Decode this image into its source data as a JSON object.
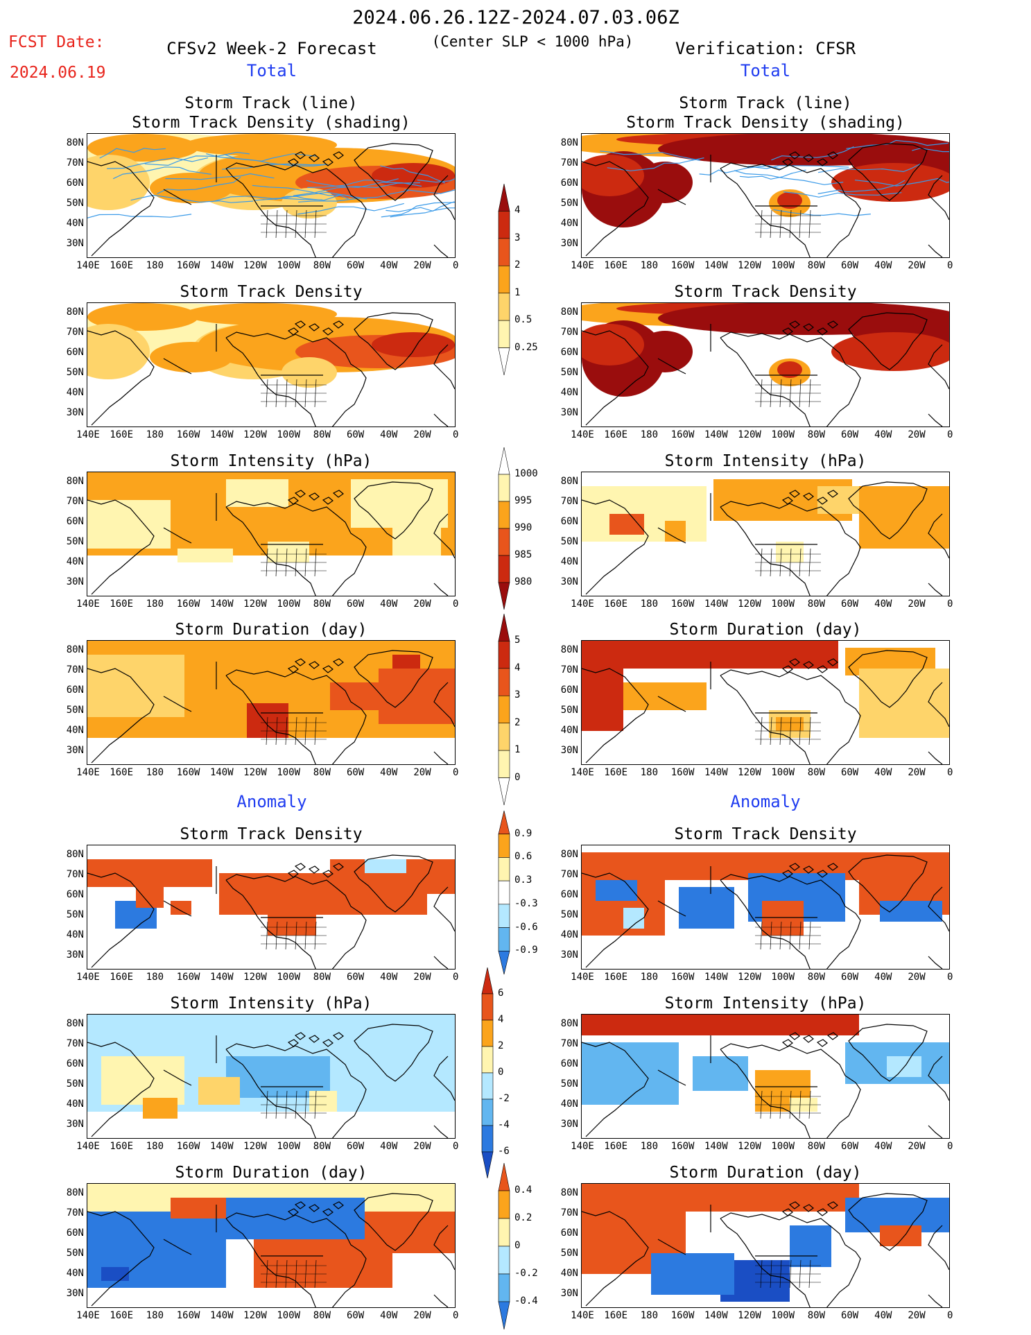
{
  "header": {
    "period": "2024.06.26.12Z-2024.07.03.06Z",
    "fcst_label": "FCST Date:",
    "fcst_date": "2024.06.19",
    "forecast_title": "CFSv2 Week-2 Forecast",
    "center_note": "(Center SLP < 1000 hPa)",
    "verification_title": "Verification: CFSR",
    "total_left": "Total",
    "total_right": "Total",
    "anomaly_left": "Anomaly",
    "anomaly_right": "Anomaly"
  },
  "panel_titles": {
    "track_line": "Storm Track (line)",
    "track_shading": "Storm Track Density (shading)",
    "density": "Storm Track Density",
    "intensity": "Storm Intensity (hPa)",
    "duration": "Storm Duration (day)"
  },
  "axes": {
    "lat_labels": [
      "80N",
      "70N",
      "60N",
      "50N",
      "40N",
      "30N"
    ],
    "lon_labels": [
      "140E",
      "160E",
      "180",
      "160W",
      "140W",
      "120W",
      "100W",
      "80W",
      "60W",
      "40W",
      "20W",
      "0"
    ]
  },
  "colorbars": {
    "density_total": [
      "4",
      "3",
      "2",
      "1",
      "0.5",
      "0.25"
    ],
    "intensity_total": [
      "1000",
      "995",
      "990",
      "985",
      "980"
    ],
    "duration_total": [
      "5",
      "4",
      "3",
      "2",
      "1",
      "0"
    ],
    "density_anom": [
      "0.9",
      "0.6",
      "0.3",
      "-0.3",
      "-0.6",
      "-0.9"
    ],
    "intensity_anom": [
      "6",
      "4",
      "2",
      "0",
      "-2",
      "-4",
      "-6"
    ],
    "duration_anom": [
      "0.4",
      "0.2",
      "0",
      "-0.2",
      "-0.4"
    ]
  },
  "colors": {
    "yellow": "#fff5b0",
    "light_orange": "#fed46a",
    "orange": "#fba41c",
    "red_orange": "#e8551c",
    "red": "#cc2a10",
    "dark_red": "#9a0d0d",
    "light_blue": "#b4e8ff",
    "mid_blue": "#62b6f0",
    "blue": "#2c7ae0",
    "dark_blue": "#1a4ec4",
    "track_line": "#3a9ae8"
  }
}
